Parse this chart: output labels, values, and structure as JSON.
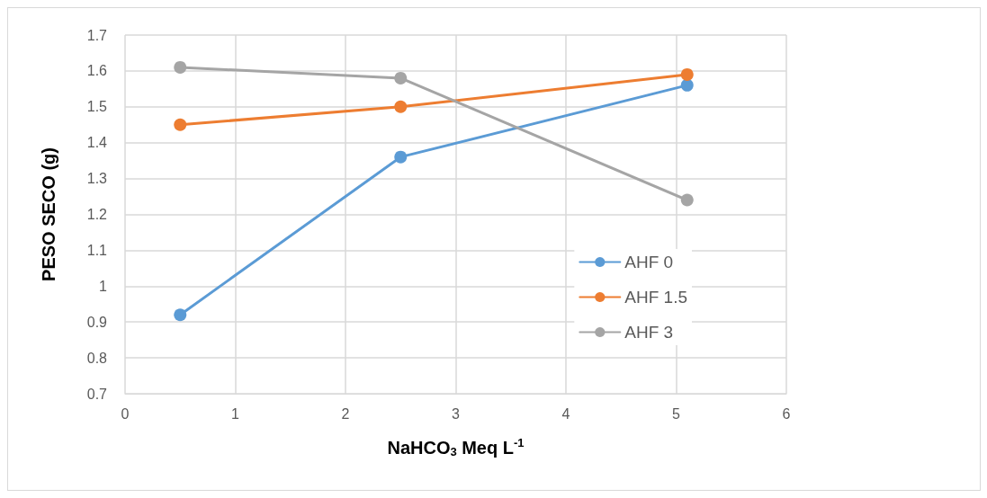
{
  "chart_data": {
    "type": "line",
    "xlabel": "NaHCO$_{3}$ Meq L$^{-1}$",
    "ylabel": "PESO SECO (g)",
    "x": [
      0.5,
      2.5,
      5.1
    ],
    "series": [
      {
        "name": "AHF 0",
        "color": "#5b9bd5",
        "values": [
          0.92,
          1.36,
          1.56
        ]
      },
      {
        "name": "AHF 1.5",
        "color": "#ed7d31",
        "values": [
          1.45,
          1.5,
          1.59
        ]
      },
      {
        "name": "AHF 3",
        "color": "#a5a5a5",
        "values": [
          1.61,
          1.58,
          1.24
        ]
      }
    ],
    "xlim": [
      0,
      6
    ],
    "xticks": [
      0,
      1,
      2,
      3,
      4,
      5,
      6
    ],
    "ylim": [
      0.7,
      1.7
    ],
    "yticks": [
      0.7,
      0.8,
      0.9,
      1,
      1.1,
      1.2,
      1.3,
      1.4,
      1.5,
      1.6,
      1.7
    ],
    "grid": true,
    "legend": "right",
    "marker": "circle",
    "line_style": "solid"
  }
}
